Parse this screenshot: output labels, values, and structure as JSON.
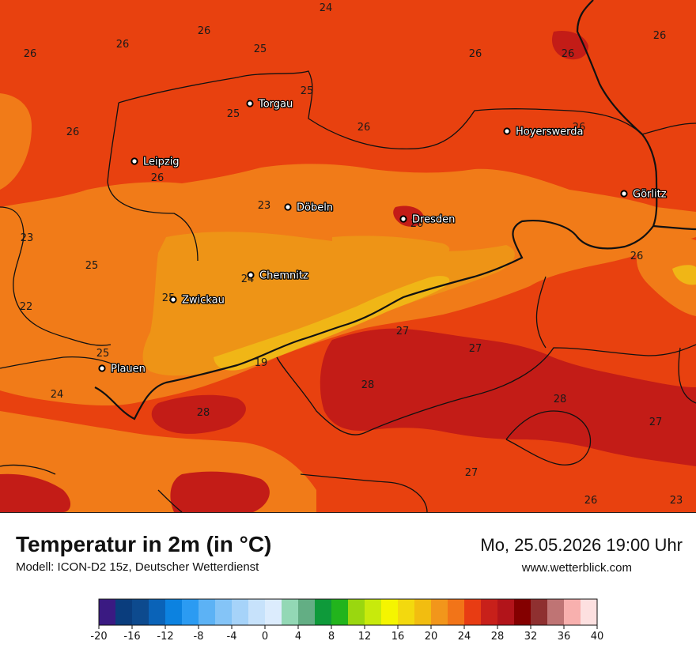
{
  "title": "Temperatur in 2m (in °C)",
  "model": "Modell: ICON-D2 15z, Deutscher Wetterdienst",
  "datetime": "Mo, 25.05.2026 19:00 Uhr",
  "website": "www.wetterblick.com",
  "cities": [
    {
      "name": "Torgau",
      "icon": "city-dot-icon"
    },
    {
      "name": "Hoyerswerda",
      "icon": "city-dot-icon"
    },
    {
      "name": "Leipzig",
      "icon": "city-dot-icon"
    },
    {
      "name": "Görlitz",
      "icon": "city-dot-icon"
    },
    {
      "name": "Döbeln",
      "icon": "city-dot-icon"
    },
    {
      "name": "Dresden",
      "icon": "city-dot-icon"
    },
    {
      "name": "Chemnitz",
      "icon": "city-dot-icon"
    },
    {
      "name": "Zwickau",
      "icon": "city-dot-icon"
    },
    {
      "name": "Plauen",
      "icon": "city-dot-icon"
    }
  ],
  "station_values": [
    "24",
    "26",
    "26",
    "26",
    "25",
    "26",
    "26",
    "26",
    "25",
    "25",
    "26",
    "26",
    "26",
    "26",
    "23",
    "23",
    "25",
    "26",
    "25",
    "22",
    "24",
    "25",
    "19",
    "27",
    "27",
    "24",
    "28",
    "28",
    "28",
    "27",
    "27",
    "26",
    "23",
    "26"
  ],
  "colorbar": {
    "ticks": [
      "-20",
      "-16",
      "-12",
      "-8",
      "-4",
      "0",
      "4",
      "8",
      "12",
      "16",
      "20",
      "24",
      "28",
      "32",
      "36",
      "40"
    ],
    "colors": [
      "#3a1a82",
      "#0a3d7d",
      "#0d4a8e",
      "#0a63b8",
      "#0c82e0",
      "#2b9bf2",
      "#5cb2f5",
      "#84c4f7",
      "#a6d3f9",
      "#c7e2fb",
      "#dcecfd",
      "#93d8b5",
      "#63ae84",
      "#0e9a3a",
      "#22b41c",
      "#9ad70f",
      "#c8ea0c",
      "#f5f500",
      "#f3d90e",
      "#f2bd10",
      "#f2961b",
      "#f27418",
      "#e83c13",
      "#c8201a",
      "#b2141a",
      "#840000",
      "#8f3030",
      "#bf7474",
      "#f8b0ae",
      "#fde0e0"
    ]
  },
  "map_colors": {
    "band_22": "#f17b18",
    "band_24": "#e8410f",
    "band_20": "#ee9416",
    "band_19": "#f0b616",
    "band_28": "#c31c17",
    "border": "#111111"
  }
}
